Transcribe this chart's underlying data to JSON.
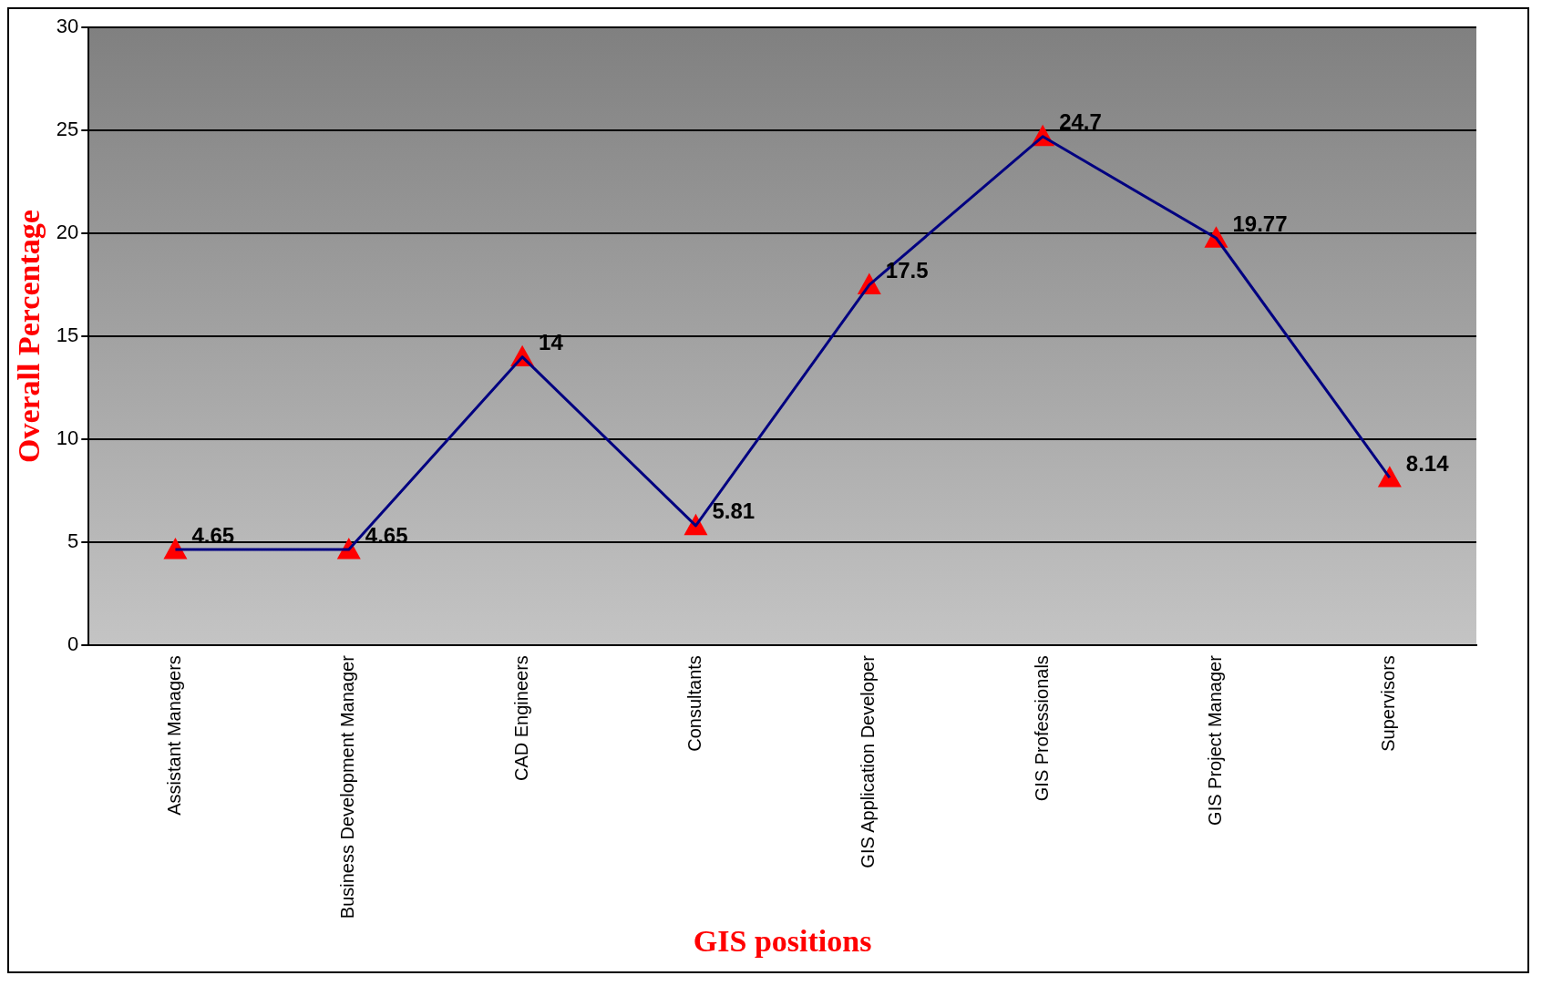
{
  "chart_data": {
    "type": "line",
    "xlabel": "GIS positions",
    "ylabel": "Overall Percentage",
    "categories": [
      "Assistant Managers",
      "Business Development Manager",
      "CAD Engineers",
      "Consultants",
      "GIS Application Developer",
      "GIS Professionals",
      "GIS Project Manager",
      "Supervisors"
    ],
    "series": [
      {
        "color": "#000080",
        "values": [
          4.65,
          4.65,
          14,
          5.81,
          17.5,
          24.7,
          19.77,
          8.14
        ]
      }
    ],
    "ylim": [
      0,
      30
    ],
    "yticks": [
      0,
      5,
      10,
      15,
      20,
      25,
      30
    ],
    "grid": "y",
    "legend": false,
    "marker": "triangle",
    "line_style": "solid",
    "data_labels": true
  }
}
